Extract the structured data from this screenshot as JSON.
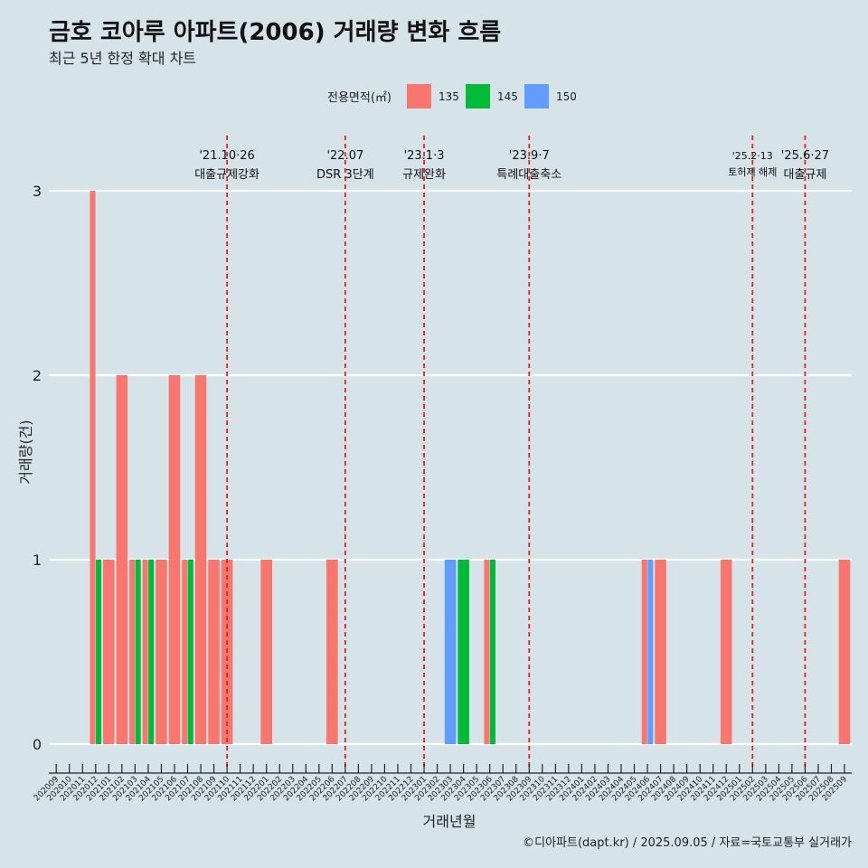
{
  "chart_data": {
    "type": "bar",
    "title": "금호 코아루 아파트(2006) 거래량 변화 흐름",
    "subtitle": "최근 5년 한정 확대 차트",
    "xlabel": "거래년월",
    "ylabel": "거래량(건)",
    "ylim": [
      0,
      3
    ],
    "yticks": [
      0,
      1,
      2,
      3
    ],
    "legend_title": "전용면적(㎡)",
    "caption": "©디아파트(dapt.kr) / 2025.09.05 / 자료=국토교통부 실거래가",
    "categories": [
      "202009",
      "202010",
      "202011",
      "202012",
      "202101",
      "202102",
      "202103",
      "202104",
      "202105",
      "202106",
      "202107",
      "202108",
      "202109",
      "202110",
      "202111",
      "202112",
      "202201",
      "202202",
      "202203",
      "202204",
      "202205",
      "202206",
      "202207",
      "202208",
      "202209",
      "202210",
      "202211",
      "202212",
      "202301",
      "202302",
      "202303",
      "202304",
      "202305",
      "202306",
      "202307",
      "202308",
      "202309",
      "202310",
      "202311",
      "202312",
      "202401",
      "202402",
      "202403",
      "202404",
      "202405",
      "202406",
      "202407",
      "202408",
      "202409",
      "202410",
      "202411",
      "202412",
      "202501",
      "202502",
      "202503",
      "202504",
      "202505",
      "202506",
      "202507",
      "202508",
      "202509"
    ],
    "series": [
      {
        "name": "135",
        "color": "#f8766d",
        "values": [
          0,
          0,
          0,
          3,
          1,
          2,
          1,
          1,
          1,
          2,
          1,
          2,
          1,
          1,
          0,
          0,
          1,
          0,
          0,
          0,
          0,
          1,
          0,
          0,
          0,
          0,
          0,
          0,
          0,
          0,
          0,
          0,
          0,
          1,
          0,
          0,
          0,
          0,
          0,
          0,
          0,
          0,
          0,
          0,
          0,
          1,
          1,
          0,
          0,
          0,
          0,
          1,
          0,
          0,
          0,
          0,
          0,
          0,
          0,
          0,
          1
        ]
      },
      {
        "name": "145",
        "color": "#00ba38",
        "values": [
          0,
          0,
          0,
          1,
          0,
          0,
          1,
          1,
          0,
          0,
          1,
          0,
          0,
          0,
          0,
          0,
          0,
          0,
          0,
          0,
          0,
          0,
          0,
          0,
          0,
          0,
          0,
          0,
          0,
          0,
          0,
          1,
          0,
          1,
          0,
          0,
          0,
          0,
          0,
          0,
          0,
          0,
          0,
          0,
          0,
          0,
          0,
          0,
          0,
          0,
          0,
          0,
          0,
          0,
          0,
          0,
          0,
          0,
          0,
          0,
          0
        ]
      },
      {
        "name": "150",
        "color": "#619cff",
        "values": [
          0,
          0,
          0,
          0,
          0,
          0,
          0,
          0,
          0,
          0,
          0,
          0,
          0,
          0,
          0,
          0,
          0,
          0,
          0,
          0,
          0,
          0,
          0,
          0,
          0,
          0,
          0,
          0,
          0,
          0,
          1,
          0,
          0,
          0,
          0,
          0,
          0,
          0,
          0,
          0,
          0,
          0,
          0,
          0,
          0,
          1,
          0,
          0,
          0,
          0,
          0,
          0,
          0,
          0,
          0,
          0,
          0,
          0,
          0,
          0,
          0
        ]
      }
    ],
    "annotations": [
      {
        "date": "'21.10·26",
        "label": "대출규제강화",
        "category": "202110",
        "small": false
      },
      {
        "date": "'22.07",
        "label": "DSR 3단계",
        "category": "202207",
        "small": false
      },
      {
        "date": "'23.1·3",
        "label": "규제완화",
        "category": "202301",
        "small": false
      },
      {
        "date": "'23.9·7",
        "label": "특례대출축소",
        "category": "202309",
        "small": false
      },
      {
        "date": "'25.2·13",
        "label": "토허제 해제",
        "category": "202502",
        "small": true
      },
      {
        "date": "'25.6·27",
        "label": "대출규제",
        "category": "202506",
        "small": false
      }
    ]
  }
}
